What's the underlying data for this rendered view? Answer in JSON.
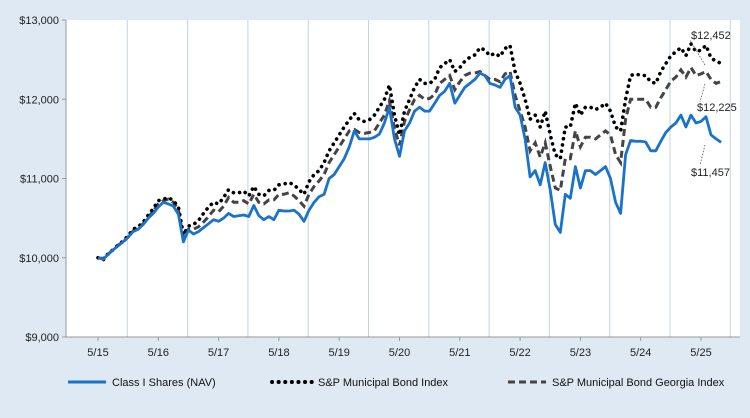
{
  "chart_data": {
    "type": "line",
    "title": "",
    "xlabel": "",
    "ylabel": "",
    "ylim": [
      9000,
      13000
    ],
    "y_ticks": [
      "$9,000",
      "$10,000",
      "$11,000",
      "$12,000",
      "$13,000"
    ],
    "y_tick_values": [
      9000,
      10000,
      11000,
      12000,
      13000
    ],
    "x_ticks": [
      "5/15",
      "5/16",
      "5/17",
      "5/18",
      "5/19",
      "5/20",
      "5/21",
      "5/22",
      "5/23",
      "5/24",
      "5/25"
    ],
    "grid": "vertical",
    "legend_position": "bottom",
    "end_labels": [
      "$12,452",
      "$12,225",
      "$11,457"
    ],
    "colors": {
      "background": "#dfe9f3",
      "plot": "#ffffff",
      "grid": "#c5d3e2",
      "class_i": "#1a73c9",
      "muni": "#000000",
      "georgia": "#444444"
    },
    "series": [
      {
        "name": "Class I Shares (NAV)",
        "style": "solid",
        "values": [
          10000,
          9980,
          10040,
          10100,
          10150,
          10200,
          10260,
          10330,
          10360,
          10420,
          10500,
          10560,
          10640,
          10700,
          10680,
          10650,
          10550,
          10200,
          10350,
          10300,
          10330,
          10380,
          10430,
          10480,
          10460,
          10500,
          10560,
          10520,
          10530,
          10540,
          10520,
          10660,
          10530,
          10480,
          10520,
          10480,
          10600,
          10590,
          10590,
          10600,
          10550,
          10460,
          10600,
          10700,
          10770,
          10800,
          11000,
          11050,
          11150,
          11250,
          11400,
          11600,
          11500,
          11500,
          11500,
          11520,
          11560,
          11700,
          11900,
          11500,
          11280,
          11600,
          11700,
          11850,
          11900,
          11850,
          11850,
          11950,
          12050,
          12100,
          12200,
          11950,
          12050,
          12150,
          12200,
          12250,
          12330,
          12300,
          12200,
          12180,
          12150,
          12250,
          12300,
          11900,
          11800,
          11500,
          11020,
          11100,
          10920,
          11200,
          10850,
          10420,
          10320,
          10800,
          10750,
          11150,
          10880,
          11100,
          11100,
          11050,
          11100,
          11150,
          11000,
          10700,
          10560,
          11300,
          11480,
          11470,
          11470,
          11460,
          11350,
          11350,
          11470,
          11580,
          11650,
          11700,
          11800,
          11650,
          11800,
          11700,
          11720,
          11780,
          11550,
          11500,
          11457
        ]
      },
      {
        "name": "S&P Municipal Bond Index",
        "style": "dotted",
        "values": [
          10000,
          9970,
          10050,
          10100,
          10160,
          10210,
          10280,
          10360,
          10390,
          10450,
          10540,
          10620,
          10720,
          10740,
          10760,
          10720,
          10640,
          10290,
          10400,
          10420,
          10470,
          10560,
          10640,
          10700,
          10680,
          10760,
          10860,
          10820,
          10820,
          10840,
          10780,
          10900,
          10800,
          10780,
          10850,
          10850,
          10920,
          10930,
          10950,
          10920,
          10860,
          10800,
          10960,
          11050,
          11100,
          11200,
          11350,
          11450,
          11550,
          11650,
          11740,
          11820,
          11740,
          11720,
          11740,
          11800,
          11900,
          12000,
          12180,
          11800,
          11550,
          11850,
          12000,
          12150,
          12250,
          12200,
          12200,
          12250,
          12400,
          12450,
          12500,
          12350,
          12400,
          12480,
          12530,
          12560,
          12650,
          12620,
          12550,
          12580,
          12540,
          12640,
          12680,
          12350,
          12200,
          12000,
          11750,
          11800,
          11650,
          11850,
          11550,
          11300,
          11250,
          11650,
          11650,
          11950,
          11800,
          11900,
          11900,
          11870,
          11900,
          11950,
          11850,
          11650,
          11600,
          12000,
          12300,
          12320,
          12300,
          12300,
          12220,
          12200,
          12350,
          12450,
          12550,
          12600,
          12650,
          12550,
          12700,
          12600,
          12620,
          12680,
          12520,
          12480,
          12452
        ]
      },
      {
        "name": "S&P Municipal Bond Georgia Index",
        "style": "dashed",
        "values": [
          10000,
          9990,
          10040,
          10110,
          10160,
          10200,
          10260,
          10340,
          10370,
          10430,
          10510,
          10590,
          10680,
          10720,
          10740,
          10700,
          10600,
          10250,
          10360,
          10360,
          10390,
          10450,
          10520,
          10600,
          10580,
          10650,
          10760,
          10700,
          10700,
          10720,
          10680,
          10800,
          10700,
          10680,
          10730,
          10730,
          10800,
          10800,
          10820,
          10780,
          10720,
          10650,
          10800,
          10900,
          10970,
          11050,
          11200,
          11300,
          11400,
          11500,
          11600,
          11620,
          11580,
          11570,
          11580,
          11600,
          11700,
          11800,
          11980,
          11630,
          11420,
          11720,
          11870,
          12000,
          12050,
          12000,
          12010,
          12060,
          12200,
          12250,
          12300,
          12120,
          12220,
          12300,
          12330,
          12330,
          12350,
          12300,
          12250,
          12250,
          12220,
          12320,
          12350,
          12050,
          11850,
          11650,
          11350,
          11450,
          11270,
          11450,
          11150,
          10880,
          10850,
          11250,
          11250,
          11600,
          11400,
          11520,
          11520,
          11500,
          11550,
          11600,
          11550,
          11300,
          11200,
          11750,
          12000,
          12000,
          12000,
          12000,
          11900,
          11900,
          12020,
          12120,
          12230,
          12280,
          12370,
          12280,
          12400,
          12300,
          12320,
          12350,
          12250,
          12200,
          12225
        ]
      }
    ]
  }
}
